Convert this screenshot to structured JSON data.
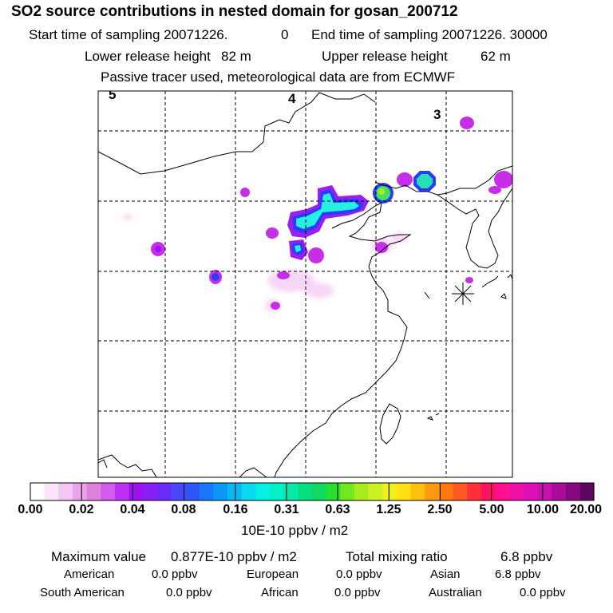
{
  "header": {
    "title": "SO2 source contributions in nested domain for gosan_200712",
    "start_label": "Start time of sampling 20071226.",
    "start_hour": "0",
    "end_label": "End time of sampling 20071226. 30000",
    "lower_label": "Lower release height",
    "lower_value": "82 m",
    "upper_label": "Upper release height",
    "upper_value": "62 m",
    "tracer_note": "Passive tracer used, meteorological data are from ECMWF"
  },
  "map": {
    "grid_labels": [
      "5",
      "4",
      "3"
    ],
    "receptor_marker": "asterisk",
    "plumes": [
      {
        "name": "plume-main",
        "color": "#26f0e6",
        "level": "0.16"
      },
      {
        "name": "plume-green",
        "color": "#44e060",
        "level": "0.63"
      },
      {
        "name": "plume-teal",
        "color": "#25e0b5",
        "level": "0.31"
      }
    ]
  },
  "colorbar": {
    "colors": [
      "#ffffff",
      "#fbe3fb",
      "#f4c6f4",
      "#eaa5ea",
      "#dd82dd",
      "#d05cec",
      "#bf30f4",
      "#a010f0",
      "#8a1ef6",
      "#6c2cf8",
      "#4848fa",
      "#2d55fa",
      "#1b76f8",
      "#0a98f6",
      "#0ab9f4",
      "#08d8f0",
      "#08f0e2",
      "#06f0c8",
      "#06e8a6",
      "#06e080",
      "#10d860",
      "#28e030",
      "#70e820",
      "#a8ec20",
      "#ccf020",
      "#eef020",
      "#ffe010",
      "#ffc010",
      "#ff9a10",
      "#ff7810",
      "#ff5820",
      "#ff3038",
      "#ff1060",
      "#ff1090",
      "#f010a8",
      "#e010b8",
      "#c810b0",
      "#a80c98",
      "#880880",
      "#600660"
    ],
    "labels": [
      "0.00",
      "0.02",
      "0.04",
      "0.08",
      "0.16",
      "0.31",
      "0.63",
      "1.25",
      "2.50",
      "5.00",
      "10.00",
      "20.00"
    ],
    "unit": "10E-10 ppbv / m2"
  },
  "summary": {
    "max_label": "Maximum value",
    "max_value": "0.877E-10 ppbv / m2",
    "total_label": "Total mixing ratio",
    "total_value": "6.8 ppbv",
    "regions": [
      {
        "name": "American",
        "value": "0.0 ppbv"
      },
      {
        "name": "European",
        "value": "0.0 ppbv"
      },
      {
        "name": "Asian",
        "value": "6.8 ppbv"
      },
      {
        "name": "South American",
        "value": "0.0 ppbv"
      },
      {
        "name": "African",
        "value": "0.0 ppbv"
      },
      {
        "name": "Australian",
        "value": "0.0 ppbv"
      }
    ]
  }
}
